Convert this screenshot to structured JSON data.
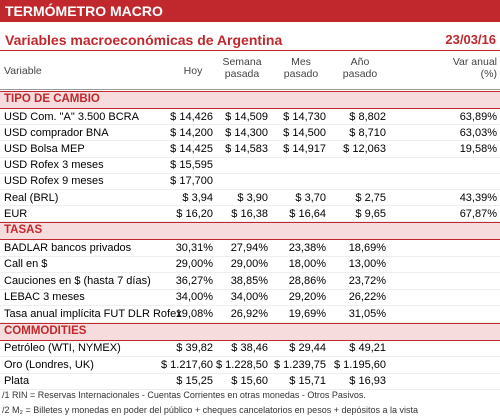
{
  "header": {
    "title": "TERMÓMETRO MACRO",
    "subtitle": "Variables macroeconómicas de Argentina",
    "date": "23/03/16"
  },
  "table": {
    "columns": [
      "Variable",
      "Hoy",
      "Semana pasada",
      "Mes pasado",
      "Año pasado",
      "Var anual (%)"
    ],
    "sections": [
      {
        "title": "TIPO DE CAMBIO",
        "rows": [
          [
            "USD Com. \"A\" 3.500 BCRA",
            "$ 14,426",
            "$ 14,509",
            "$ 14,730",
            "$ 8,802",
            "63,89%"
          ],
          [
            "USD comprador BNA",
            "$ 14,200",
            "$ 14,300",
            "$ 14,500",
            "$ 8,710",
            "63,03%"
          ],
          [
            "USD Bolsa MEP",
            "$ 14,425",
            "$ 14,583",
            "$ 14,917",
            "$ 12,063",
            "19,58%"
          ],
          [
            "USD Rofex 3 meses",
            "$ 15,595",
            null,
            null,
            null,
            null
          ],
          [
            "USD Rofex 9 meses",
            "$ 17,700",
            null,
            null,
            null,
            null
          ],
          [
            "Real (BRL)",
            "$ 3,94",
            "$ 3,90",
            "$ 3,70",
            "$ 2,75",
            "43,39%"
          ],
          [
            "EUR",
            "$ 16,20",
            "$ 16,38",
            "$ 16,64",
            "$ 9,65",
            "67,87%"
          ]
        ]
      },
      {
        "title": "TASAS",
        "rows": [
          [
            "BADLAR bancos privados",
            "30,31%",
            "27,94%",
            "23,38%",
            "18,69%",
            null
          ],
          [
            "Call en $",
            "29,00%",
            "29,00%",
            "18,00%",
            "13,00%",
            null
          ],
          [
            "Cauciones en $ (hasta 7 días)",
            "36,27%",
            "38,85%",
            "28,86%",
            "23,72%",
            null
          ],
          [
            "LEBAC 3 meses",
            "34,00%",
            "34,00%",
            "29,20%",
            "26,22%",
            null
          ],
          [
            "Tasa anual implícita FUT DLR Rofex",
            "19,08%",
            "26,92%",
            "19,69%",
            "31,05%",
            null
          ]
        ]
      },
      {
        "title": "COMMODITIES",
        "rows": [
          [
            "Petróleo (WTI, NYMEX)",
            "$ 39,82",
            "$ 38,46",
            "$ 29,44",
            "$ 49,21",
            null
          ],
          [
            "Oro  (Londres, UK)",
            "$ 1.217,60",
            "$ 1.228,50",
            "$ 1.239,75",
            "$ 1.195,60",
            null
          ],
          [
            "Plata",
            "$ 15,25",
            "$ 15,60",
            "$ 15,71",
            "$ 16,93",
            null
          ]
        ]
      }
    ]
  },
  "footnotes": [
    "/1 RIN = Reservas Internacionales - Cuentas Corrientes en otras monedas - Otros Pasivos.",
    "/2 M₂ = Billetes y monedas en poder del público + cheques cancelatorios en pesos + depósitos a la vista"
  ]
}
